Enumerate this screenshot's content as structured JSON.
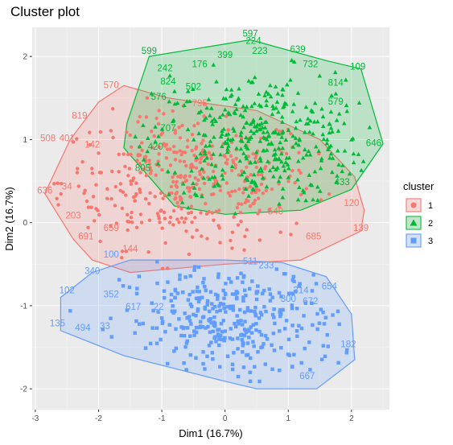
{
  "chart_data": {
    "type": "scatter",
    "title": "Cluster plot",
    "xlabel": "Dim1 (16.7%)",
    "ylabel": "Dim2 (16.7%)",
    "xlim": [
      -3.05,
      2.6
    ],
    "ylim": [
      -2.25,
      2.35
    ],
    "x_ticks": [
      -3,
      -2,
      -1,
      0,
      1,
      2
    ],
    "y_ticks": [
      -2,
      -1,
      0,
      1,
      2
    ],
    "x_tick_labels": [
      "-3",
      "-2",
      "-1",
      "0",
      "1",
      "2"
    ],
    "y_tick_labels": [
      "-2",
      "-1",
      "0",
      "1",
      "2"
    ],
    "grid": true,
    "legend_position": "right",
    "legend": {
      "title": "cluster",
      "items": [
        {
          "label": "1",
          "shape": "circle",
          "color": "#F8766D"
        },
        {
          "label": "2",
          "shape": "triangle",
          "color": "#00BA38"
        },
        {
          "label": "3",
          "shape": "square",
          "color": "#619CFF"
        }
      ]
    },
    "clusters": [
      {
        "name": "1",
        "color": "#F8766D",
        "shape": "circle",
        "hull": [
          [
            -2.85,
            0.35
          ],
          [
            -2.45,
            1.0
          ],
          [
            -2.0,
            1.45
          ],
          [
            -1.6,
            1.65
          ],
          [
            -0.9,
            1.5
          ],
          [
            0.5,
            1.35
          ],
          [
            1.5,
            1.0
          ],
          [
            2.05,
            0.55
          ],
          [
            2.2,
            0.15
          ],
          [
            2.15,
            -0.1
          ],
          [
            1.2,
            -0.45
          ],
          [
            0.0,
            -0.5
          ],
          [
            -1.5,
            -0.6
          ],
          [
            -2.1,
            -0.45
          ],
          [
            -2.4,
            -0.2
          ]
        ],
        "cloud": {
          "cx": -0.6,
          "cy": 0.5,
          "sx": 1.0,
          "sy": 0.4,
          "n": 420
        },
        "labels": [
          {
            "text": "570",
            "x": -1.8,
            "y": 1.62
          },
          {
            "text": "819",
            "x": -2.3,
            "y": 1.25
          },
          {
            "text": "508",
            "x": -2.8,
            "y": 0.98
          },
          {
            "text": "401",
            "x": -2.5,
            "y": 0.98
          },
          {
            "text": "636",
            "x": -2.85,
            "y": 0.35
          },
          {
            "text": "34",
            "x": -2.5,
            "y": 0.4
          },
          {
            "text": "691",
            "x": -2.2,
            "y": -0.2
          },
          {
            "text": "659",
            "x": -1.8,
            "y": -0.1
          },
          {
            "text": "144",
            "x": -1.5,
            "y": -0.35
          },
          {
            "text": "120",
            "x": 2.0,
            "y": 0.2
          },
          {
            "text": "139",
            "x": 2.15,
            "y": -0.1
          },
          {
            "text": "685",
            "x": 1.4,
            "y": -0.2
          },
          {
            "text": "540",
            "x": 0.8,
            "y": 0.1
          },
          {
            "text": "142",
            "x": -2.1,
            "y": 0.9
          },
          {
            "text": "203",
            "x": -2.4,
            "y": 0.05
          },
          {
            "text": "795",
            "x": -0.4,
            "y": 1.4
          }
        ]
      },
      {
        "name": "2",
        "color": "#00BA38",
        "shape": "triangle",
        "hull": [
          [
            -1.2,
            2.0
          ],
          [
            0.4,
            2.2
          ],
          [
            1.6,
            1.95
          ],
          [
            2.15,
            1.85
          ],
          [
            2.5,
            0.95
          ],
          [
            2.0,
            0.4
          ],
          [
            1.2,
            0.15
          ],
          [
            0.0,
            0.1
          ],
          [
            -0.8,
            0.2
          ],
          [
            -1.6,
            0.9
          ],
          [
            -1.55,
            1.2
          ]
        ],
        "cloud": {
          "cx": 0.55,
          "cy": 1.0,
          "sx": 0.85,
          "sy": 0.4,
          "n": 380
        },
        "labels": [
          {
            "text": "599",
            "x": -1.2,
            "y": 2.03
          },
          {
            "text": "597",
            "x": 0.4,
            "y": 2.24
          },
          {
            "text": "224",
            "x": 0.45,
            "y": 2.15
          },
          {
            "text": "223",
            "x": 0.55,
            "y": 2.03
          },
          {
            "text": "639",
            "x": 1.15,
            "y": 2.05
          },
          {
            "text": "109",
            "x": 2.1,
            "y": 1.84
          },
          {
            "text": "399",
            "x": 0.0,
            "y": 1.98
          },
          {
            "text": "814",
            "x": 1.75,
            "y": 1.65
          },
          {
            "text": "732",
            "x": 1.35,
            "y": 1.87
          },
          {
            "text": "242",
            "x": -0.95,
            "y": 1.82
          },
          {
            "text": "824",
            "x": -0.9,
            "y": 1.66
          },
          {
            "text": "502",
            "x": -0.5,
            "y": 1.6
          },
          {
            "text": "176",
            "x": -0.4,
            "y": 1.87
          },
          {
            "text": "576",
            "x": -1.05,
            "y": 1.48
          },
          {
            "text": "646",
            "x": 2.35,
            "y": 0.92
          },
          {
            "text": "433",
            "x": 1.85,
            "y": 0.45
          },
          {
            "text": "707",
            "x": -0.9,
            "y": 1.1
          },
          {
            "text": "579",
            "x": 1.75,
            "y": 1.42
          },
          {
            "text": "805",
            "x": -1.3,
            "y": 0.62
          },
          {
            "text": "420",
            "x": -1.1,
            "y": 0.88
          }
        ]
      },
      {
        "name": "3",
        "color": "#619CFF",
        "shape": "square",
        "hull": [
          [
            -2.6,
            -1.3
          ],
          [
            -2.6,
            -0.9
          ],
          [
            -2.1,
            -0.6
          ],
          [
            -1.5,
            -0.45
          ],
          [
            0.0,
            -0.45
          ],
          [
            0.9,
            -0.48
          ],
          [
            1.6,
            -0.65
          ],
          [
            2.0,
            -1.1
          ],
          [
            2.05,
            -1.65
          ],
          [
            1.45,
            -2.0
          ],
          [
            0.5,
            -2.0
          ],
          [
            -0.05,
            -1.9
          ],
          [
            -1.6,
            -1.6
          ]
        ],
        "cloud": {
          "cx": 0.1,
          "cy": -1.2,
          "sx": 0.85,
          "sy": 0.35,
          "n": 360
        },
        "labels": [
          {
            "text": "100",
            "x": -1.8,
            "y": -0.42
          },
          {
            "text": "340",
            "x": -2.1,
            "y": -0.62
          },
          {
            "text": "102",
            "x": -2.5,
            "y": -0.85
          },
          {
            "text": "352",
            "x": -1.8,
            "y": -0.9
          },
          {
            "text": "135",
            "x": -2.65,
            "y": -1.25
          },
          {
            "text": "494",
            "x": -2.25,
            "y": -1.3
          },
          {
            "text": "33",
            "x": -1.9,
            "y": -1.28
          },
          {
            "text": "617",
            "x": -1.45,
            "y": -1.05
          },
          {
            "text": "654",
            "x": 1.65,
            "y": -0.8
          },
          {
            "text": "314",
            "x": 1.2,
            "y": -0.85
          },
          {
            "text": "672",
            "x": 1.35,
            "y": -0.98
          },
          {
            "text": "667",
            "x": 1.3,
            "y": -1.88
          },
          {
            "text": "182",
            "x": 1.95,
            "y": -1.5
          },
          {
            "text": "300",
            "x": 1.0,
            "y": -0.95
          },
          {
            "text": "22",
            "x": -1.05,
            "y": -1.05
          },
          {
            "text": "511",
            "x": 0.4,
            "y": -0.5
          },
          {
            "text": "233",
            "x": 0.65,
            "y": -0.55
          }
        ]
      }
    ]
  }
}
